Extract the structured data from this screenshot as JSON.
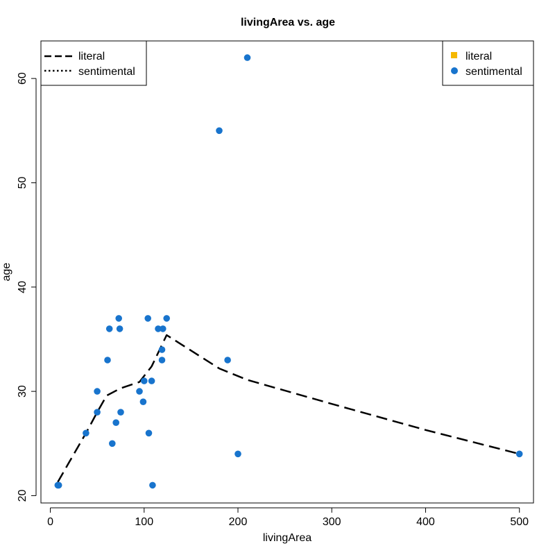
{
  "chart_data": {
    "type": "scatter",
    "title": "livingArea vs. age",
    "xlabel": "livingArea",
    "ylabel": "age",
    "xlim": [
      -10,
      515
    ],
    "ylim": [
      19.3,
      63.6
    ],
    "x_ticks": [
      0,
      100,
      200,
      300,
      400,
      500
    ],
    "y_ticks": [
      20,
      30,
      40,
      50,
      60
    ],
    "grid": false,
    "legends": [
      {
        "placement": "top-left",
        "entries": [
          {
            "label": "literal",
            "symbol": "line",
            "dash": "long-dash",
            "color": "#000000"
          },
          {
            "label": "sentimental",
            "symbol": "line",
            "dash": "dotted",
            "color": "#000000"
          }
        ]
      },
      {
        "placement": "top-right",
        "entries": [
          {
            "label": "literal",
            "symbol": "square",
            "color": "#F5B800"
          },
          {
            "label": "sentimental",
            "symbol": "circle",
            "color": "#1874CD"
          }
        ]
      }
    ],
    "series": [
      {
        "name": "sentimental",
        "kind": "points",
        "color": "#1874CD",
        "points": [
          {
            "x": 8,
            "y": 21
          },
          {
            "x": 9,
            "y": 21
          },
          {
            "x": 38,
            "y": 26
          },
          {
            "x": 50,
            "y": 28
          },
          {
            "x": 50,
            "y": 30
          },
          {
            "x": 61,
            "y": 33
          },
          {
            "x": 63,
            "y": 36
          },
          {
            "x": 66,
            "y": 25
          },
          {
            "x": 70,
            "y": 27
          },
          {
            "x": 73,
            "y": 37
          },
          {
            "x": 74,
            "y": 36
          },
          {
            "x": 75,
            "y": 28
          },
          {
            "x": 95,
            "y": 30
          },
          {
            "x": 99,
            "y": 29
          },
          {
            "x": 100,
            "y": 31
          },
          {
            "x": 104,
            "y": 37
          },
          {
            "x": 105,
            "y": 26
          },
          {
            "x": 108,
            "y": 31
          },
          {
            "x": 109,
            "y": 21
          },
          {
            "x": 115,
            "y": 36
          },
          {
            "x": 119,
            "y": 34
          },
          {
            "x": 119,
            "y": 33
          },
          {
            "x": 120,
            "y": 36
          },
          {
            "x": 124,
            "y": 37
          },
          {
            "x": 180,
            "y": 55
          },
          {
            "x": 189,
            "y": 33
          },
          {
            "x": 200,
            "y": 24
          },
          {
            "x": 210,
            "y": 62
          },
          {
            "x": 500,
            "y": 24
          }
        ]
      },
      {
        "name": "literal",
        "kind": "line",
        "dash": "long-dash",
        "color": "#000000",
        "points": [
          {
            "x": 8,
            "y": 21.3
          },
          {
            "x": 20,
            "y": 23.2
          },
          {
            "x": 38,
            "y": 26
          },
          {
            "x": 50,
            "y": 28
          },
          {
            "x": 60,
            "y": 29.6
          },
          {
            "x": 75,
            "y": 30.3
          },
          {
            "x": 95,
            "y": 30.9
          },
          {
            "x": 108,
            "y": 32.4
          },
          {
            "x": 124,
            "y": 35.4
          },
          {
            "x": 180,
            "y": 32.2
          },
          {
            "x": 210,
            "y": 31.1
          },
          {
            "x": 300,
            "y": 28.8
          },
          {
            "x": 400,
            "y": 26.3
          },
          {
            "x": 500,
            "y": 24
          }
        ]
      }
    ]
  }
}
